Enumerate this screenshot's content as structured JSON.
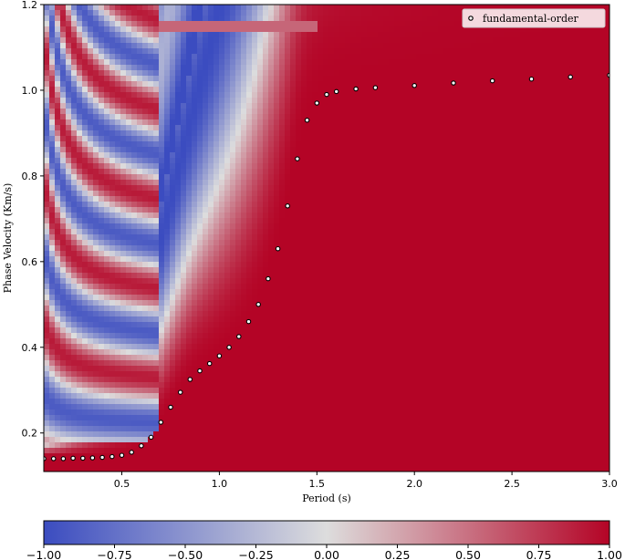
{
  "chart_data": {
    "type": "heatmap",
    "title": "",
    "xlabel": "Period (s)",
    "ylabel": "Phase Velocity (Km/s)",
    "xlim": [
      0.1,
      3.0
    ],
    "ylim": [
      0.11,
      1.2
    ],
    "x_ticks": [
      0.5,
      1.0,
      1.5,
      2.0,
      2.5,
      3.0
    ],
    "x_tick_labels": [
      "0.5",
      "1.0",
      "1.5",
      "2.0",
      "2.5",
      "3.0"
    ],
    "y_ticks": [
      0.2,
      0.4,
      0.6,
      0.8,
      1.0,
      1.2
    ],
    "y_tick_labels": [
      "0.2",
      "0.4",
      "0.6",
      "0.8",
      "1.0",
      "1.2"
    ],
    "colormap": "coolwarm",
    "colormap_colors": [
      "#3b4cc0",
      "#dddddd",
      "#b40426"
    ],
    "color_range": [
      -1.0,
      1.0
    ],
    "colorbar_ticks": [
      -1.0,
      -0.75,
      -0.5,
      -0.25,
      0.0,
      0.25,
      0.5,
      0.75,
      1.0
    ],
    "colorbar_tick_labels": [
      "−1.00",
      "−0.75",
      "−0.50",
      "−0.25",
      "0.00",
      "0.25",
      "0.50",
      "0.75",
      "1.00"
    ],
    "colorbar_position": "bottom",
    "legend": {
      "position": "top-right",
      "entries": [
        "fundamental-order"
      ]
    },
    "grid": false,
    "series": [
      {
        "name": "fundamental-order",
        "kind": "scatter",
        "marker_fill": "#ffffff",
        "marker_edge": "#000000",
        "points": [
          [
            0.1,
            0.14
          ],
          [
            0.15,
            0.14
          ],
          [
            0.2,
            0.14
          ],
          [
            0.25,
            0.141
          ],
          [
            0.3,
            0.141
          ],
          [
            0.35,
            0.142
          ],
          [
            0.4,
            0.143
          ],
          [
            0.45,
            0.145
          ],
          [
            0.5,
            0.148
          ],
          [
            0.55,
            0.155
          ],
          [
            0.6,
            0.17
          ],
          [
            0.65,
            0.19
          ],
          [
            0.7,
            0.225
          ],
          [
            0.75,
            0.26
          ],
          [
            0.8,
            0.295
          ],
          [
            0.85,
            0.325
          ],
          [
            0.9,
            0.345
          ],
          [
            0.95,
            0.362
          ],
          [
            1.0,
            0.38
          ],
          [
            1.05,
            0.4
          ],
          [
            1.1,
            0.425
          ],
          [
            1.15,
            0.46
          ],
          [
            1.2,
            0.5
          ],
          [
            1.25,
            0.56
          ],
          [
            1.3,
            0.63
          ],
          [
            1.35,
            0.73
          ],
          [
            1.4,
            0.84
          ],
          [
            1.45,
            0.93
          ],
          [
            1.5,
            0.97
          ],
          [
            1.55,
            0.99
          ],
          [
            1.6,
            0.997
          ],
          [
            1.7,
            1.003
          ],
          [
            1.8,
            1.006
          ],
          [
            2.0,
            1.011
          ],
          [
            2.2,
            1.017
          ],
          [
            2.4,
            1.022
          ],
          [
            2.6,
            1.026
          ],
          [
            2.8,
            1.031
          ],
          [
            3.0,
            1.035
          ]
        ]
      }
    ]
  }
}
